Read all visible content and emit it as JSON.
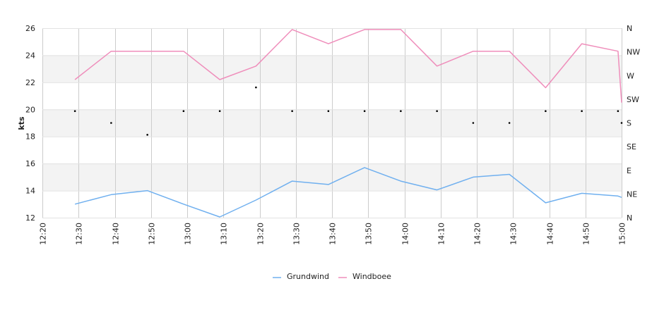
{
  "chart_data": {
    "type": "line",
    "ylabel": "kts",
    "ylim": [
      12,
      26
    ],
    "yticks": [
      "12",
      "14",
      "16",
      "18",
      "20",
      "22",
      "24",
      "26"
    ],
    "xticks": [
      "12:20",
      "12:30",
      "12:40",
      "12:50",
      "13:00",
      "13:10",
      "13:20",
      "13:30",
      "13:40",
      "13:50",
      "14:00",
      "14:10",
      "14:20",
      "14:30",
      "14:40",
      "14:50",
      "15:00"
    ],
    "y2ticks": [
      "N",
      "NE",
      "E",
      "SE",
      "S",
      "SW",
      "W",
      "NW",
      "N"
    ],
    "grid": true,
    "legend_position": "bottom-center",
    "series": [
      {
        "name": "Grundwind",
        "color": "#70b0ef",
        "x": [
          "12:29",
          "12:39",
          "12:49",
          "12:59",
          "13:09",
          "13:19",
          "13:29",
          "13:39",
          "13:49",
          "13:59",
          "14:09",
          "14:19",
          "14:29",
          "14:39",
          "14:49",
          "14:59",
          "15:00"
        ],
        "values": [
          13.0,
          13.7,
          14.0,
          13.0,
          12.05,
          13.3,
          14.7,
          14.45,
          15.7,
          14.7,
          14.05,
          15.0,
          15.2,
          13.1,
          13.8,
          13.6,
          13.5
        ]
      },
      {
        "name": "Windboee",
        "color": "#ef8ebb",
        "x": [
          "12:29",
          "12:39",
          "12:49",
          "12:59",
          "13:09",
          "13:19",
          "13:29",
          "13:39",
          "13:49",
          "13:59",
          "14:09",
          "14:19",
          "14:29",
          "14:39",
          "14:49",
          "14:59",
          "15:00"
        ],
        "values": [
          22.2,
          24.3,
          24.3,
          24.3,
          22.2,
          23.2,
          25.9,
          24.85,
          25.9,
          25.9,
          23.2,
          24.3,
          24.3,
          21.6,
          24.85,
          24.3,
          20.5
        ]
      }
    ],
    "direction_points": {
      "x": [
        "12:29",
        "12:39",
        "12:49",
        "12:59",
        "13:09",
        "13:19",
        "13:29",
        "13:39",
        "13:49",
        "13:59",
        "14:09",
        "14:19",
        "14:29",
        "14:39",
        "14:49",
        "14:59",
        "15:00"
      ],
      "values": [
        "SSW",
        "S",
        "SSE",
        "SSW",
        "SSW",
        "WSW",
        "SSW",
        "SSW",
        "SSW",
        "SSW",
        "SSW",
        "S",
        "S",
        "SSW",
        "SSW",
        "SSW",
        "S"
      ]
    }
  }
}
